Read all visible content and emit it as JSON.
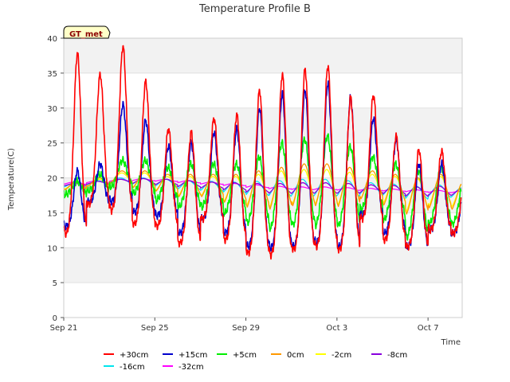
{
  "chart_data": {
    "type": "line",
    "title": "Temperature Profile B",
    "xlabel": "Time",
    "ylabel": "Temperature(C)",
    "site_label": "GT_met",
    "xlim": [
      0,
      17.5
    ],
    "ylim": [
      0,
      40
    ],
    "yticks": [
      0,
      5,
      10,
      15,
      20,
      25,
      30,
      35,
      40
    ],
    "xticks": [
      {
        "pos": 0,
        "label": "Sep 21"
      },
      {
        "pos": 4,
        "label": "Sep 25"
      },
      {
        "pos": 8,
        "label": "Sep 29"
      },
      {
        "pos": 12,
        "label": "Oct 3"
      },
      {
        "pos": 16,
        "label": "Oct 7"
      }
    ],
    "grid": "horizontal bands",
    "legend_position": "bottom",
    "series": [
      {
        "name": "+30cm",
        "color": "#ff0000",
        "daily_min": [
          11.8,
          16.0,
          15.2,
          13.2,
          13.0,
          10.5,
          14.0,
          11.0,
          9.0,
          8.8,
          9.5,
          10.0,
          9.5,
          14.0,
          11.0,
          10.0,
          12.5,
          12.0
        ],
        "daily_max": [
          37.8,
          34.8,
          38.8,
          33.8,
          27.0,
          26.5,
          28.5,
          29.0,
          32.5,
          34.8,
          35.5,
          36.0,
          31.5,
          31.8,
          26.0,
          24.0,
          23.8,
          20.0
        ]
      },
      {
        "name": "+15cm",
        "color": "#0000cc",
        "daily_min": [
          13.0,
          16.5,
          16.5,
          15.0,
          14.5,
          12.0,
          14.0,
          12.0,
          10.0,
          9.8,
          10.0,
          10.5,
          10.0,
          14.5,
          12.0,
          10.0,
          12.5,
          12.0
        ],
        "daily_max": [
          21.0,
          22.0,
          30.5,
          28.2,
          24.5,
          25.0,
          26.5,
          27.0,
          30.0,
          32.0,
          32.5,
          33.5,
          31.5,
          28.5,
          25.5,
          22.0,
          22.0,
          19.0
        ]
      },
      {
        "name": "+5cm",
        "color": "#00ee00",
        "daily_min": [
          17.5,
          18.0,
          18.5,
          17.5,
          16.5,
          15.5,
          15.5,
          14.5,
          13.0,
          12.0,
          12.5,
          12.5,
          12.5,
          15.0,
          13.5,
          11.0,
          13.0,
          13.0
        ],
        "daily_max": [
          19.5,
          20.5,
          22.5,
          22.5,
          21.5,
          22.0,
          22.0,
          22.0,
          23.0,
          25.0,
          25.5,
          26.0,
          24.5,
          23.0,
          22.0,
          21.0,
          21.5,
          19.5
        ]
      },
      {
        "name": "0cm",
        "color": "#ff9900",
        "daily_min": [
          18.0,
          18.5,
          18.8,
          18.0,
          17.5,
          16.5,
          16.5,
          15.5,
          14.5,
          14.0,
          14.5,
          14.5,
          14.5,
          16.0,
          15.0,
          13.5,
          14.5,
          14.5
        ],
        "daily_max": [
          19.5,
          20.0,
          21.0,
          21.0,
          20.5,
          20.5,
          20.5,
          20.5,
          21.0,
          21.5,
          22.0,
          22.0,
          21.5,
          21.0,
          20.5,
          20.0,
          20.5,
          19.5
        ]
      },
      {
        "name": "-2cm",
        "color": "#ffff00",
        "daily_min": [
          18.2,
          18.6,
          18.9,
          18.2,
          17.7,
          16.8,
          16.8,
          15.8,
          15.0,
          14.5,
          15.0,
          15.0,
          15.0,
          16.2,
          15.5,
          14.0,
          15.0,
          15.0
        ],
        "daily_max": [
          19.3,
          19.8,
          20.7,
          20.7,
          20.2,
          20.2,
          20.2,
          20.2,
          20.5,
          21.0,
          21.2,
          21.2,
          20.8,
          20.5,
          20.2,
          19.8,
          20.2,
          19.3
        ]
      },
      {
        "name": "-8cm",
        "color": "#8800dd",
        "daily_min": [
          18.8,
          19.0,
          19.2,
          19.0,
          18.8,
          18.5,
          18.3,
          18.0,
          17.6,
          17.4,
          17.4,
          17.4,
          17.4,
          17.6,
          17.4,
          17.0,
          17.2,
          17.2
        ],
        "daily_max": [
          19.2,
          19.5,
          19.8,
          19.9,
          19.8,
          19.6,
          19.4,
          19.3,
          19.2,
          19.2,
          19.3,
          19.3,
          19.2,
          19.0,
          18.9,
          18.7,
          18.8,
          18.5
        ]
      },
      {
        "name": "-16cm",
        "color": "#00e5ee",
        "daily_min": [
          18.5,
          18.8,
          19.0,
          18.8,
          18.5,
          18.0,
          17.8,
          17.5,
          17.0,
          16.8,
          16.8,
          16.8,
          16.8,
          17.2,
          17.0,
          16.5,
          16.8,
          16.8
        ],
        "daily_max": [
          19.3,
          19.6,
          20.0,
          20.0,
          19.8,
          19.6,
          19.5,
          19.4,
          19.5,
          19.6,
          19.8,
          19.8,
          19.6,
          19.3,
          19.1,
          18.8,
          19.0,
          18.6
        ]
      },
      {
        "name": "-32cm",
        "color": "#ff00ff",
        "daily_min": [
          19.0,
          19.2,
          19.4,
          19.5,
          19.4,
          19.2,
          19.0,
          18.8,
          18.5,
          18.3,
          18.2,
          18.2,
          18.1,
          18.1,
          18.0,
          17.9,
          17.8,
          17.8
        ],
        "daily_max": [
          19.4,
          19.6,
          19.8,
          19.9,
          19.8,
          19.6,
          19.4,
          19.2,
          19.0,
          18.8,
          18.7,
          18.7,
          18.6,
          18.5,
          18.4,
          18.3,
          18.2,
          18.1
        ]
      }
    ]
  }
}
